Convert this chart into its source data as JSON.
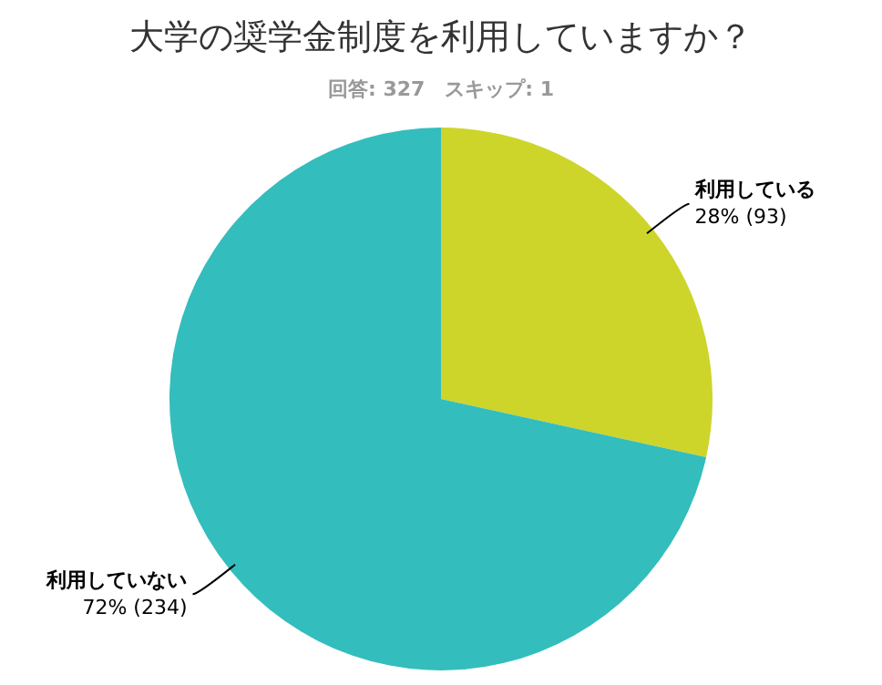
{
  "chart_data": {
    "type": "pie",
    "title": "大学の奨学金制度を利用していますか？",
    "subtitle": "回答: 327　スキップ: 1",
    "categories": [
      "利用している",
      "利用していない"
    ],
    "values": [
      93,
      234
    ],
    "colors": [
      "#cdd52a",
      "#33bdbd"
    ],
    "value_labels": [
      "28% (93)",
      "72% (234)"
    ],
    "legend": false
  }
}
